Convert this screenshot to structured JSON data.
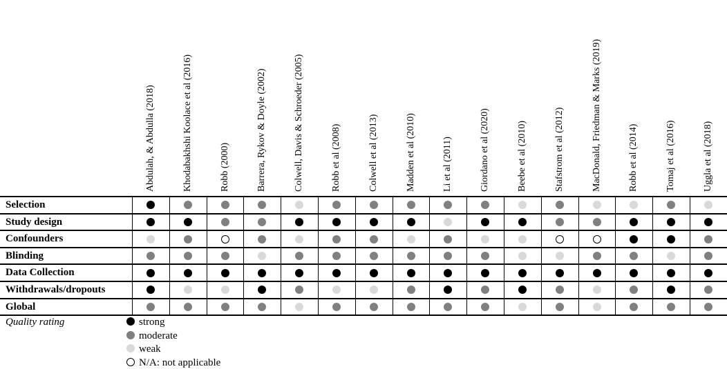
{
  "studies": [
    "Abdulah, & Abdulla (2018)",
    "Khodabakhshi Koolace et al (2016)",
    "Robb (2000)",
    "Barrera, Rykov & Doyle (2002)",
    "Colwell, Davis & Schroeder (2005)",
    "Robb et al (2008)",
    "Colwell et al (2013)",
    "Madden et al (2010)",
    "Li et al (2011)",
    "Giordano et al (2020)",
    "Beebe et al (2010)",
    "Stafstrom et al (2012)",
    "MacDonald, Friedman & Marks (2019)",
    "Robb et al (2014)",
    "Tomaj et al (2016)",
    "Uggla et al (2018)"
  ],
  "rows": [
    {
      "label": "Selection",
      "ratings": [
        "S",
        "M",
        "M",
        "M",
        "W",
        "M",
        "M",
        "M",
        "M",
        "M",
        "W",
        "M",
        "W",
        "W",
        "M",
        "W"
      ]
    },
    {
      "label": "Study design",
      "ratings": [
        "S",
        "S",
        "M",
        "M",
        "S",
        "S",
        "S",
        "S",
        "W",
        "S",
        "S",
        "M",
        "M",
        "S",
        "S",
        "S"
      ]
    },
    {
      "label": "Confounders",
      "ratings": [
        "W",
        "M",
        "N",
        "M",
        "W",
        "M",
        "M",
        "W",
        "M",
        "W",
        "W",
        "N",
        "N",
        "S",
        "S",
        "M"
      ]
    },
    {
      "label": "Blinding",
      "ratings": [
        "M",
        "M",
        "M",
        "W",
        "M",
        "M",
        "M",
        "M",
        "M",
        "M",
        "W",
        "W",
        "M",
        "M",
        "W",
        "M"
      ]
    },
    {
      "label": "Data Collection",
      "ratings": [
        "S",
        "S",
        "S",
        "S",
        "S",
        "S",
        "S",
        "S",
        "S",
        "S",
        "S",
        "S",
        "S",
        "S",
        "S",
        "S"
      ]
    },
    {
      "label": "Withdrawals/dropouts",
      "ratings": [
        "S",
        "W",
        "W",
        "S",
        "M",
        "W",
        "W",
        "M",
        "S",
        "M",
        "S",
        "M",
        "W",
        "M",
        "S",
        "M"
      ]
    },
    {
      "label": "Global",
      "ratings": [
        "M",
        "M",
        "M",
        "M",
        "W",
        "M",
        "M",
        "M",
        "M",
        "M",
        "W",
        "M",
        "W",
        "M",
        "M",
        "M"
      ]
    }
  ],
  "legend": {
    "title": "Quality rating",
    "items": [
      {
        "code": "S",
        "class": "strong",
        "label": "strong"
      },
      {
        "code": "M",
        "class": "moderate",
        "label": "moderate"
      },
      {
        "code": "W",
        "class": "weak",
        "label": "weak"
      },
      {
        "code": "N",
        "class": "na",
        "label": "N/A: not applicable"
      }
    ]
  },
  "colors": {
    "strong": "#000000",
    "moderate": "#808080",
    "weak": "#d9d9d9",
    "na": "#ffffff"
  }
}
